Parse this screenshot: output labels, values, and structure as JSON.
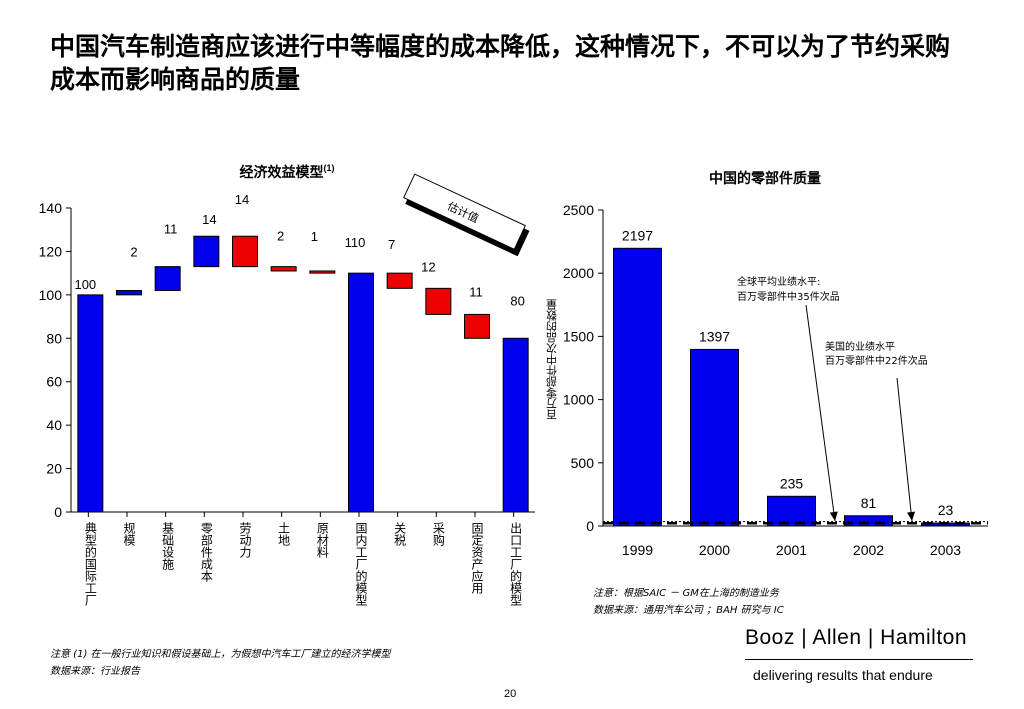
{
  "title": "中国汽车制造商应该进行中等幅度的成本降低，这种情况下，不可以为了节约采购成本而影响商品的质量",
  "chart_data": [
    {
      "type": "bar",
      "subtype": "waterfall",
      "title": "经济效益模型",
      "title_sup": "(1)",
      "stamp": "估计值",
      "ylim": [
        0,
        140
      ],
      "yticks": [
        0,
        20,
        40,
        60,
        80,
        100,
        120,
        140
      ],
      "grid": false,
      "bars": [
        {
          "category": "典型的国际工厂",
          "start": 0,
          "end": 100,
          "color": "#0000ee",
          "label": "100"
        },
        {
          "category": "规模",
          "start": 100,
          "end": 102,
          "color": "#0000ee",
          "label": "2"
        },
        {
          "category": "基础设施",
          "start": 102,
          "end": 113,
          "color": "#0000ee",
          "label": "11"
        },
        {
          "category": "零部件成本",
          "start": 113,
          "end": 127,
          "color": "#0000ee",
          "label": "14"
        },
        {
          "category": "劳动力",
          "start": 127,
          "end": 113,
          "color": "#ee0000",
          "label": "14"
        },
        {
          "category": "土地",
          "start": 113,
          "end": 111,
          "color": "#ee0000",
          "label": "2"
        },
        {
          "category": "原材料",
          "start": 111,
          "end": 110,
          "color": "#ee0000",
          "label": "1"
        },
        {
          "category": "国内工厂的模型",
          "start": 0,
          "end": 110,
          "color": "#0000ee",
          "label": "110"
        },
        {
          "category": "关税",
          "start": 110,
          "end": 103,
          "color": "#ee0000",
          "label": "7"
        },
        {
          "category": "采购",
          "start": 103,
          "end": 91,
          "color": "#ee0000",
          "label": "12"
        },
        {
          "category": "固定资产应用",
          "start": 91,
          "end": 80,
          "color": "#ee0000",
          "label": "11"
        },
        {
          "category": "出口工厂的模型",
          "start": 0,
          "end": 80,
          "color": "#0000ee",
          "label": "80"
        }
      ]
    },
    {
      "type": "bar",
      "title": "中国的零部件质量",
      "ylabel": "百万零部件中次品的数量",
      "categories": [
        "1999",
        "2000",
        "2001",
        "2002",
        "2003"
      ],
      "values": [
        2197,
        1397,
        235,
        81,
        23
      ],
      "ylim": [
        0,
        2500
      ],
      "yticks": [
        0,
        500,
        1000,
        1500,
        2000,
        2500
      ],
      "grid": false,
      "color": "#0000ee",
      "reference_lines": [
        {
          "name": "全球平均业绩水平",
          "value": 35
        },
        {
          "name": "美国的业绩水平",
          "value": 22
        }
      ],
      "annotations": [
        {
          "line1": "全球平均业绩水平:",
          "line2": "百万零部件中35件次品"
        },
        {
          "line1": "美国的业绩水平",
          "line2": "百万零部件中22件次品"
        }
      ]
    }
  ],
  "notes": {
    "right_1": "注意：根据SAIC － GM在上海的制造业务",
    "right_2": "数据来源：通用汽车公司 ；BAH 研究与 IC",
    "left_1": "注意 (1) 在一般行业知识和假设基础上，为假想中汽车工厂建立的经济学模型",
    "left_2": "数据来源：行业报告"
  },
  "logo": {
    "company": "Booz | Allen | Hamilton",
    "tagline": "delivering results that endure"
  },
  "page_number": "20"
}
